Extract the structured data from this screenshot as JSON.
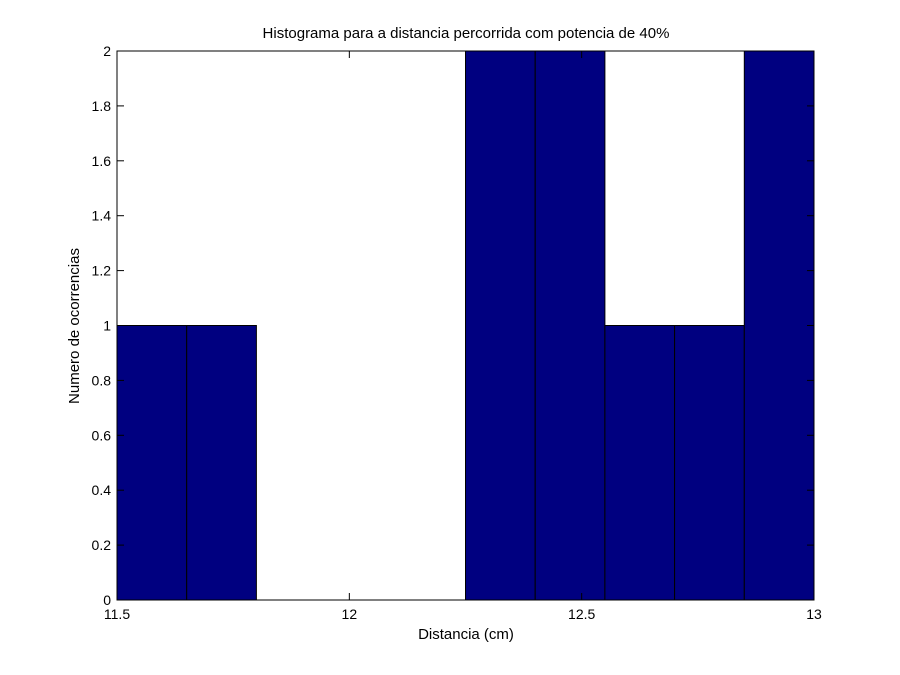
{
  "chart_data": {
    "type": "bar",
    "title": "Histograma para a distancia percorrida com potencia de 40%",
    "xlabel": "Distancia (cm)",
    "ylabel": "Numero de ocorrencias",
    "xlim": [
      11.5,
      13
    ],
    "ylim": [
      0,
      2
    ],
    "bin_edges": [
      11.5,
      11.65,
      11.8,
      11.95,
      12.1,
      12.25,
      12.4,
      12.55,
      12.7,
      12.85,
      13.0
    ],
    "values": [
      1,
      1,
      0,
      0,
      0,
      2,
      2,
      1,
      1,
      2
    ],
    "xticks": [
      11.5,
      12,
      12.5,
      13
    ],
    "xtick_labels": [
      "11.5",
      "12",
      "12.5",
      "13"
    ],
    "yticks": [
      0,
      0.2,
      0.4,
      0.6,
      0.8,
      1,
      1.2,
      1.4,
      1.6,
      1.8,
      2
    ],
    "ytick_labels": [
      "0",
      "0.2",
      "0.4",
      "0.6",
      "0.8",
      "1",
      "1.2",
      "1.4",
      "1.6",
      "1.8",
      "2"
    ],
    "grid": false,
    "colors": {
      "bar_fill": "#000080",
      "bar_edge": "#000000",
      "axes": "#000000",
      "background": "#ffffff"
    }
  }
}
